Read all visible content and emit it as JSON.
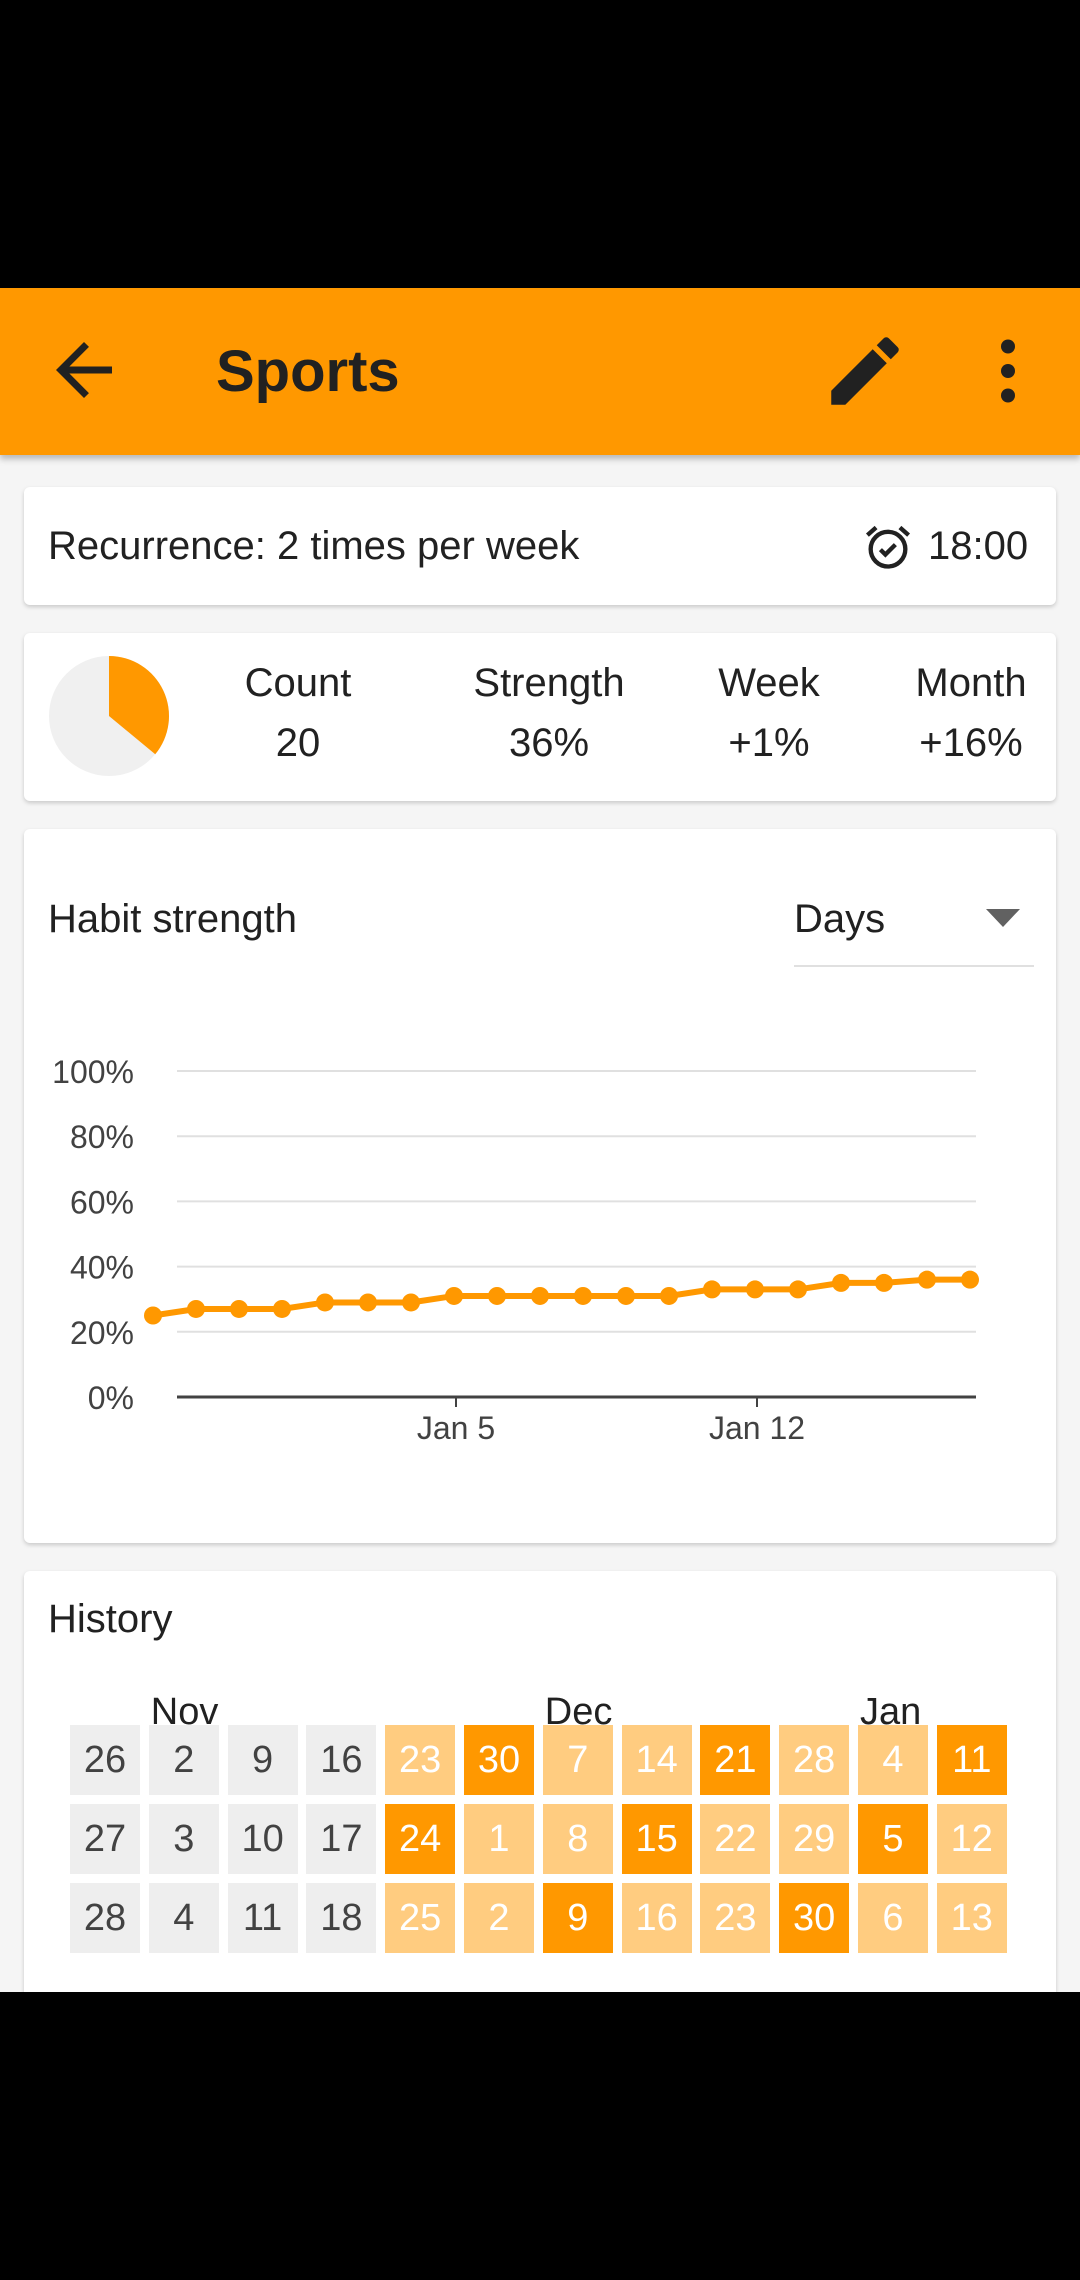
{
  "app": {
    "title": "Sports",
    "back_icon": "arrow-back-icon",
    "edit_icon": "pencil-icon",
    "more_icon": "more-vert-icon",
    "accent": "#ff9800"
  },
  "recurrence": {
    "text": "Recurrence: 2 times per week",
    "alarm_icon": "alarm-clock-icon",
    "time": "18:00"
  },
  "overview": {
    "score_fraction": 0.36,
    "count_label": "Count",
    "count_value": "20",
    "strength_label": "Strength",
    "strength_value": "36%",
    "week_label": "Week",
    "week_value": "+1%",
    "month_label": "Month",
    "month_value": "+16%"
  },
  "strength_card": {
    "title": "Habit strength",
    "period": "Days",
    "dropdown_icon": "dropdown-arrow-icon"
  },
  "chart_data": {
    "type": "line",
    "y_ticks": [
      "100%",
      "80%",
      "60%",
      "40%",
      "20%",
      "0%"
    ],
    "ylim": [
      0,
      100
    ],
    "x_tick_labels": [
      "Jan 5",
      "Jan 12"
    ],
    "x_tick_indices": [
      7,
      14
    ],
    "values": [
      25,
      27,
      27,
      27,
      29,
      29,
      29,
      31,
      31,
      31,
      31,
      31,
      31,
      33,
      33,
      33,
      35,
      35,
      36,
      36
    ],
    "color": "#ff9800"
  },
  "history": {
    "title": "History",
    "months": [
      {
        "label": "Nov",
        "col": 1
      },
      {
        "label": "Dec",
        "col": 6
      },
      {
        "label": "Jan",
        "col": 10
      }
    ],
    "grid": [
      [
        "26",
        "2",
        "9",
        "16",
        "23",
        "30",
        "7",
        "14",
        "21",
        "28",
        "4",
        "11"
      ],
      [
        "27",
        "3",
        "10",
        "17",
        "24",
        "1",
        "8",
        "15",
        "22",
        "29",
        "5",
        "12"
      ],
      [
        "28",
        "4",
        "11",
        "18",
        "25",
        "2",
        "9",
        "16",
        "23",
        "30",
        "6",
        "13"
      ]
    ],
    "levels": [
      [
        0,
        0,
        0,
        0,
        1,
        2,
        1,
        1,
        2,
        1,
        1,
        2
      ],
      [
        0,
        0,
        0,
        0,
        2,
        1,
        1,
        2,
        1,
        1,
        2,
        1
      ],
      [
        0,
        0,
        0,
        0,
        1,
        1,
        2,
        1,
        1,
        2,
        1,
        1
      ]
    ]
  }
}
